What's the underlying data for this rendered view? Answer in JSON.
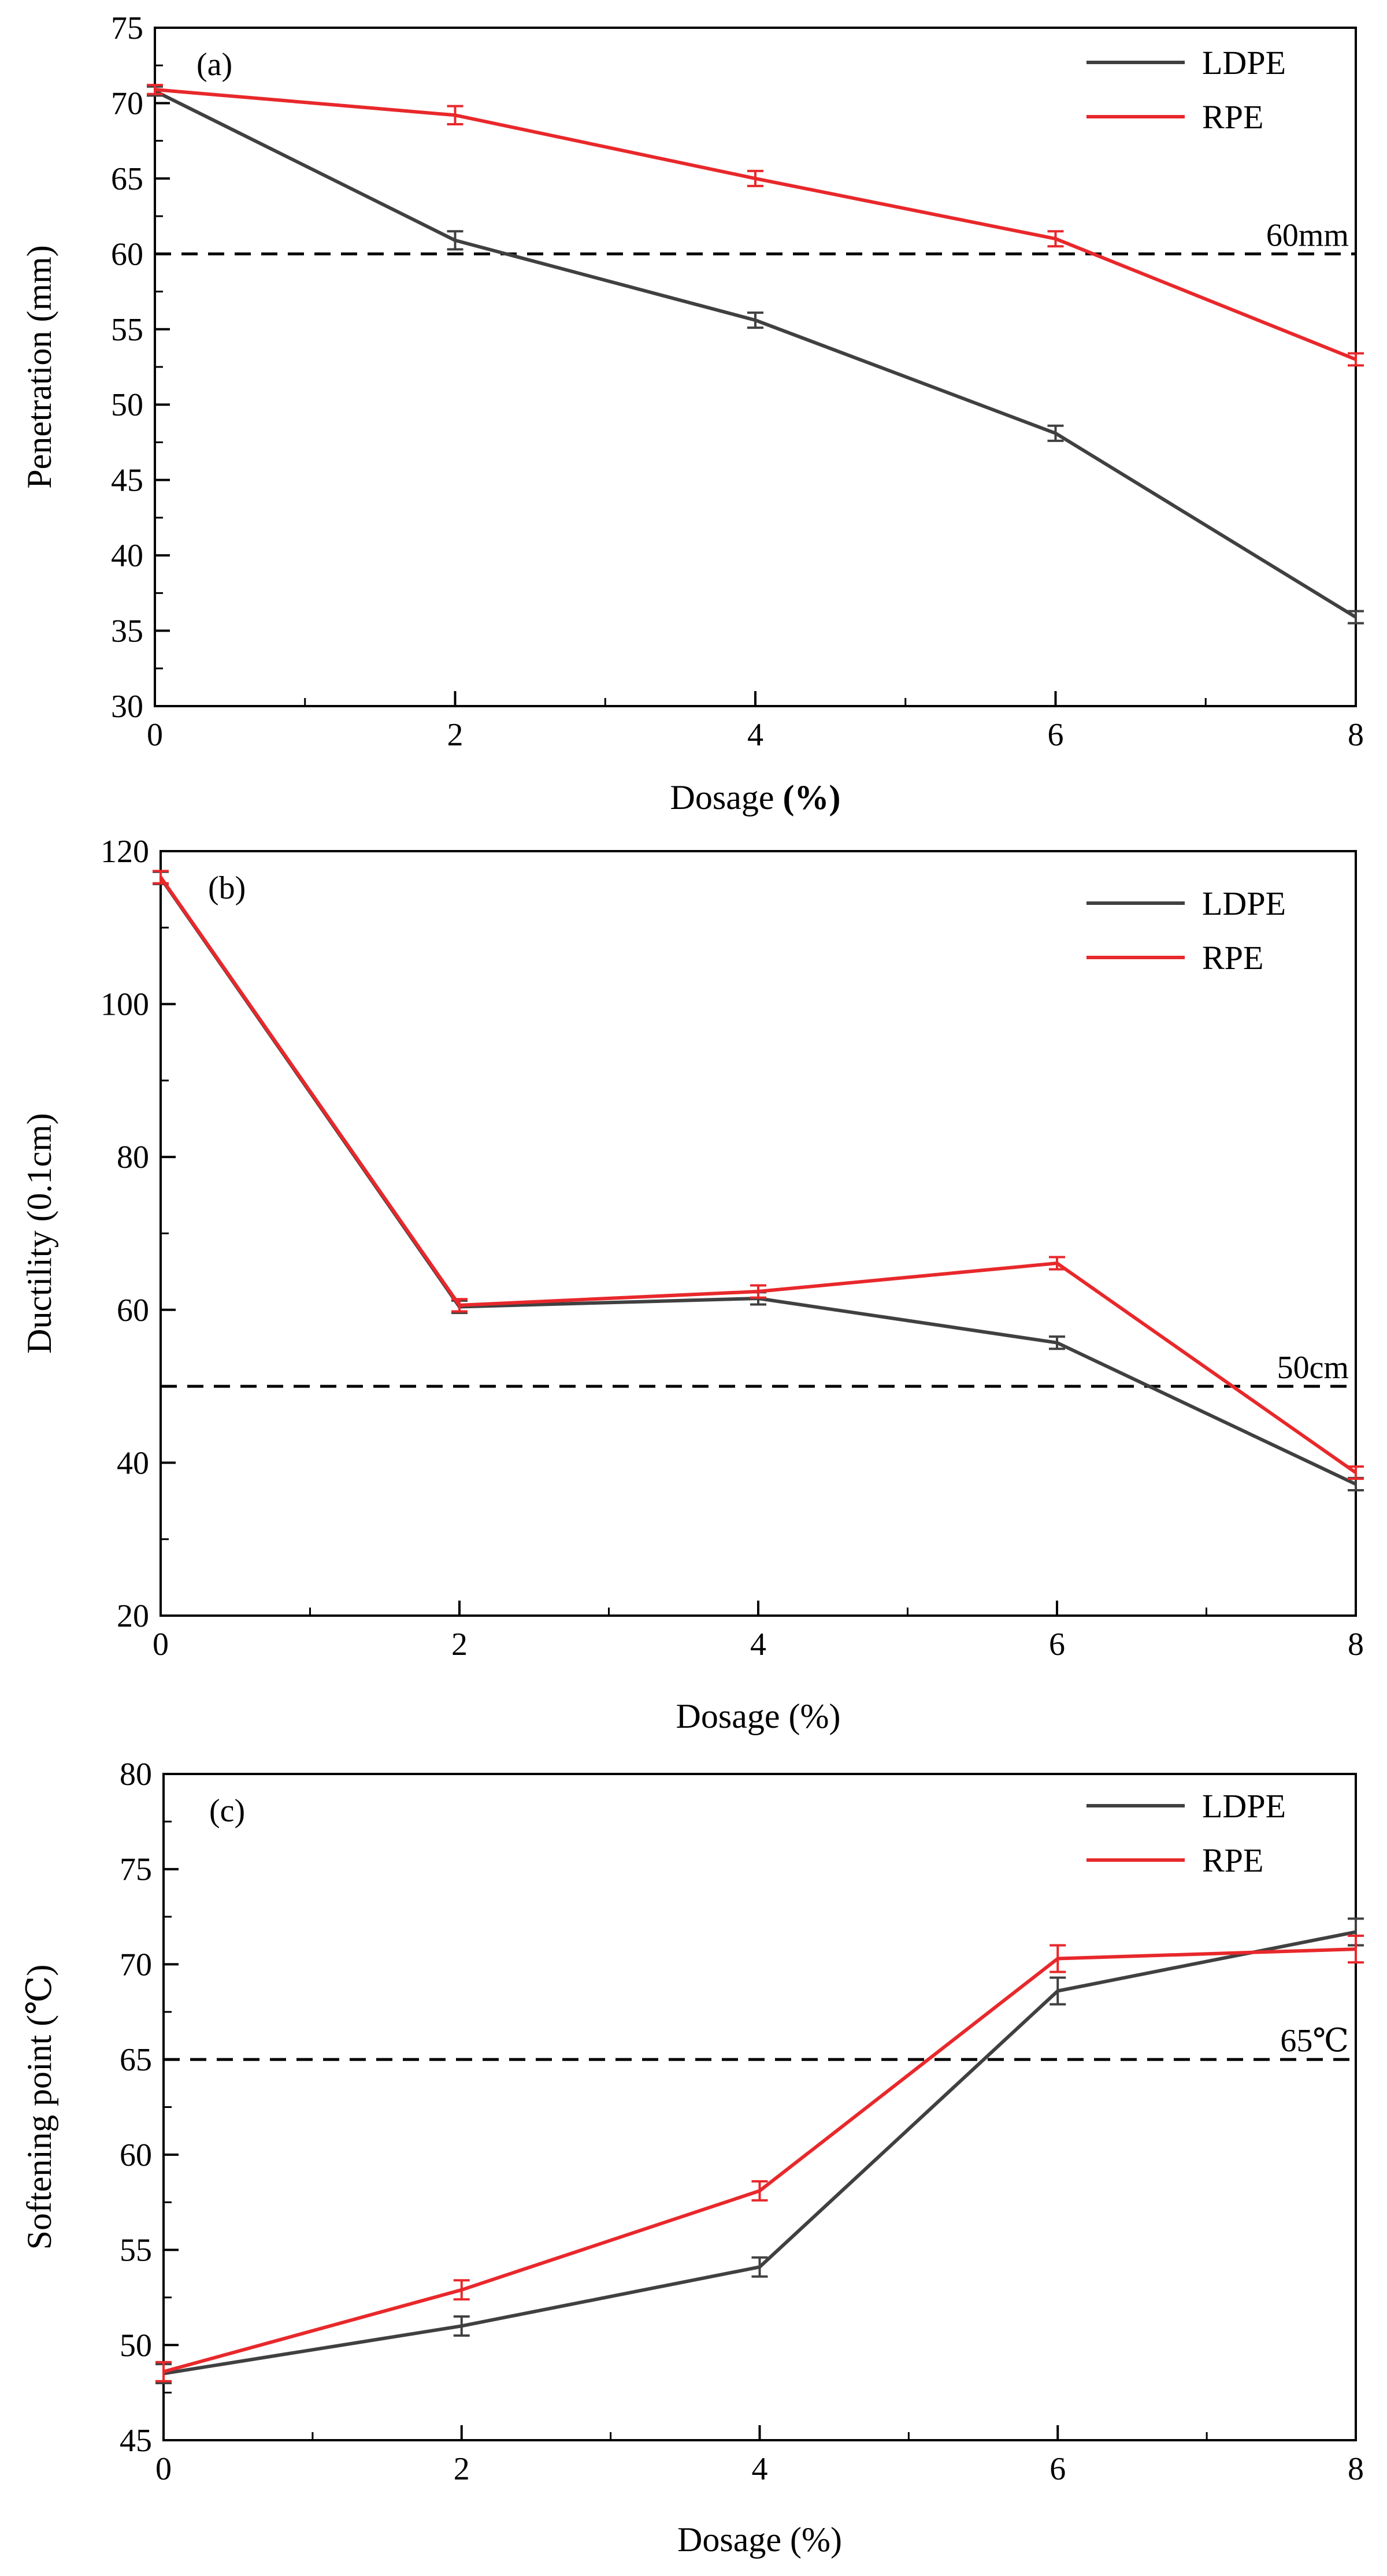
{
  "chart_data": [
    {
      "type": "line",
      "panel_label": "(a)",
      "x": [
        0,
        2,
        4,
        6,
        8
      ],
      "xlim": [
        0,
        8
      ],
      "xticks": [
        "0",
        "2",
        "4",
        "6",
        "8"
      ],
      "xlabel_main": "Dosage ",
      "xlabel_unit": "(%)",
      "ylabel": "Penetration (mm)",
      "ylim": [
        30,
        75
      ],
      "yticks": [
        "30",
        "35",
        "40",
        "45",
        "50",
        "55",
        "60",
        "65",
        "70",
        "75"
      ],
      "series": [
        {
          "name": "LDPE",
          "color": "#404040",
          "values": [
            70.8,
            60.9,
            55.6,
            48.1,
            35.9
          ],
          "errors": [
            0.3,
            0.6,
            0.5,
            0.5,
            0.4
          ]
        },
        {
          "name": "RPE",
          "color": "#e8282b",
          "values": [
            70.9,
            69.2,
            65.0,
            61.0,
            53.0
          ],
          "errors": [
            0.3,
            0.6,
            0.5,
            0.5,
            0.4
          ]
        }
      ],
      "reference": {
        "value": 60,
        "label": "60mm"
      },
      "legend_position": "top-right"
    },
    {
      "type": "line",
      "panel_label": "(b)",
      "x": [
        0,
        2,
        4,
        6,
        8
      ],
      "xlim": [
        0,
        8
      ],
      "xticks": [
        "0",
        "2",
        "4",
        "6",
        "8"
      ],
      "xlabel_main": "Dosage ",
      "xlabel_unit": "(%)",
      "ylabel": "Ductility (0.1cm)",
      "ylim": [
        20,
        120
      ],
      "yticks": [
        "20",
        "40",
        "60",
        "80",
        "100",
        "120"
      ],
      "series": [
        {
          "name": "LDPE",
          "color": "#404040",
          "values": [
            116.5,
            60.4,
            61.5,
            55.7,
            37.2
          ],
          "errors": [
            0.8,
            0.8,
            0.8,
            0.8,
            0.8
          ]
        },
        {
          "name": "RPE",
          "color": "#e8282b",
          "values": [
            116.6,
            60.6,
            62.4,
            66.1,
            38.7
          ],
          "errors": [
            0.8,
            0.8,
            0.8,
            0.8,
            0.8
          ]
        }
      ],
      "reference": {
        "value": 50,
        "label": "50cm"
      },
      "legend_position": "top-right"
    },
    {
      "type": "line",
      "panel_label": "(c)",
      "x": [
        0,
        2,
        4,
        6,
        8
      ],
      "xlim": [
        0,
        8
      ],
      "xticks": [
        "0",
        "2",
        "4",
        "6",
        "8"
      ],
      "xlabel_main": "Dosage ",
      "xlabel_unit": "(%)",
      "ylabel": "Softening point (℃)",
      "ylim": [
        45,
        80
      ],
      "yticks": [
        "45",
        "50",
        "55",
        "60",
        "65",
        "70",
        "75",
        "80"
      ],
      "series": [
        {
          "name": "LDPE",
          "color": "#404040",
          "values": [
            48.5,
            51.0,
            54.1,
            68.6,
            71.7
          ],
          "errors": [
            0.5,
            0.5,
            0.5,
            0.7,
            0.7
          ]
        },
        {
          "name": "RPE",
          "color": "#e8282b",
          "values": [
            48.6,
            52.9,
            58.1,
            70.3,
            70.8
          ],
          "errors": [
            0.5,
            0.5,
            0.5,
            0.7,
            0.7
          ]
        }
      ],
      "reference": {
        "value": 65,
        "label": "65℃"
      },
      "legend_position": "top-right"
    }
  ]
}
